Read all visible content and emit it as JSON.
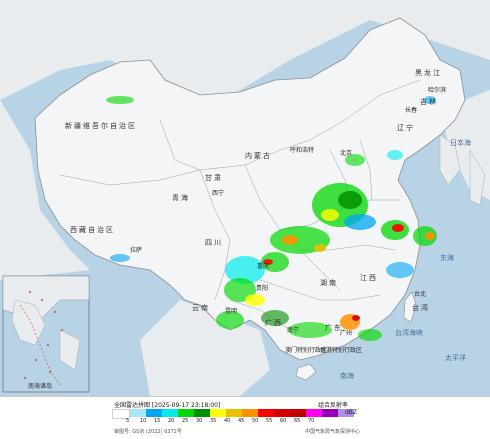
{
  "map": {
    "regions": [
      {
        "name": "新疆维吾尔自治区"
      },
      {
        "name": "西藏自治区"
      },
      {
        "name": "青海"
      },
      {
        "name": "内蒙古"
      },
      {
        "name": "黑龙江"
      },
      {
        "name": "吉林"
      },
      {
        "name": "辽宁"
      },
      {
        "name": "甘肃"
      },
      {
        "name": "四川"
      },
      {
        "name": "云南"
      },
      {
        "name": "湖南"
      },
      {
        "name": "江西"
      },
      {
        "name": "广西"
      },
      {
        "name": "广东"
      },
      {
        "name": "台湾"
      }
    ],
    "cities": [
      {
        "name": "哈尔滨"
      },
      {
        "name": "长春"
      },
      {
        "name": "呼和浩特"
      },
      {
        "name": "北京"
      },
      {
        "name": "西宁"
      },
      {
        "name": "拉萨"
      },
      {
        "name": "重庆"
      },
      {
        "name": "贵阳"
      },
      {
        "name": "昆明"
      },
      {
        "name": "南宁"
      },
      {
        "name": "广州"
      },
      {
        "name": "台北"
      },
      {
        "name": "澳门特别行政区"
      },
      {
        "name": "香港特别行政区"
      }
    ],
    "seas": [
      {
        "name": "日本海"
      },
      {
        "name": "东海"
      },
      {
        "name": "台湾海峡"
      },
      {
        "name": "太平洋"
      },
      {
        "name": "南海"
      }
    ],
    "inset_label": "南海诸岛"
  },
  "legend": {
    "title": "全国雷达拼图 [2025-09-17 23:18:00]",
    "product": "组合反射率",
    "unit": "dBZ",
    "approval": "审图号: GS京 (2022) 0372号",
    "source": "中国气象局气象探测中心",
    "ticks": [
      "5",
      "10",
      "15",
      "20",
      "25",
      "30",
      "35",
      "40",
      "45",
      "50",
      "55",
      "60",
      "65",
      "70"
    ],
    "colors": [
      "#ffffff",
      "#a8e7fa",
      "#00a6f5",
      "#00ecec",
      "#00d800",
      "#009000",
      "#ffff00",
      "#e7c000",
      "#ff9000",
      "#ff0000",
      "#d60000",
      "#c00000",
      "#ff00f0",
      "#9600b4",
      "#ad90f0"
    ]
  }
}
